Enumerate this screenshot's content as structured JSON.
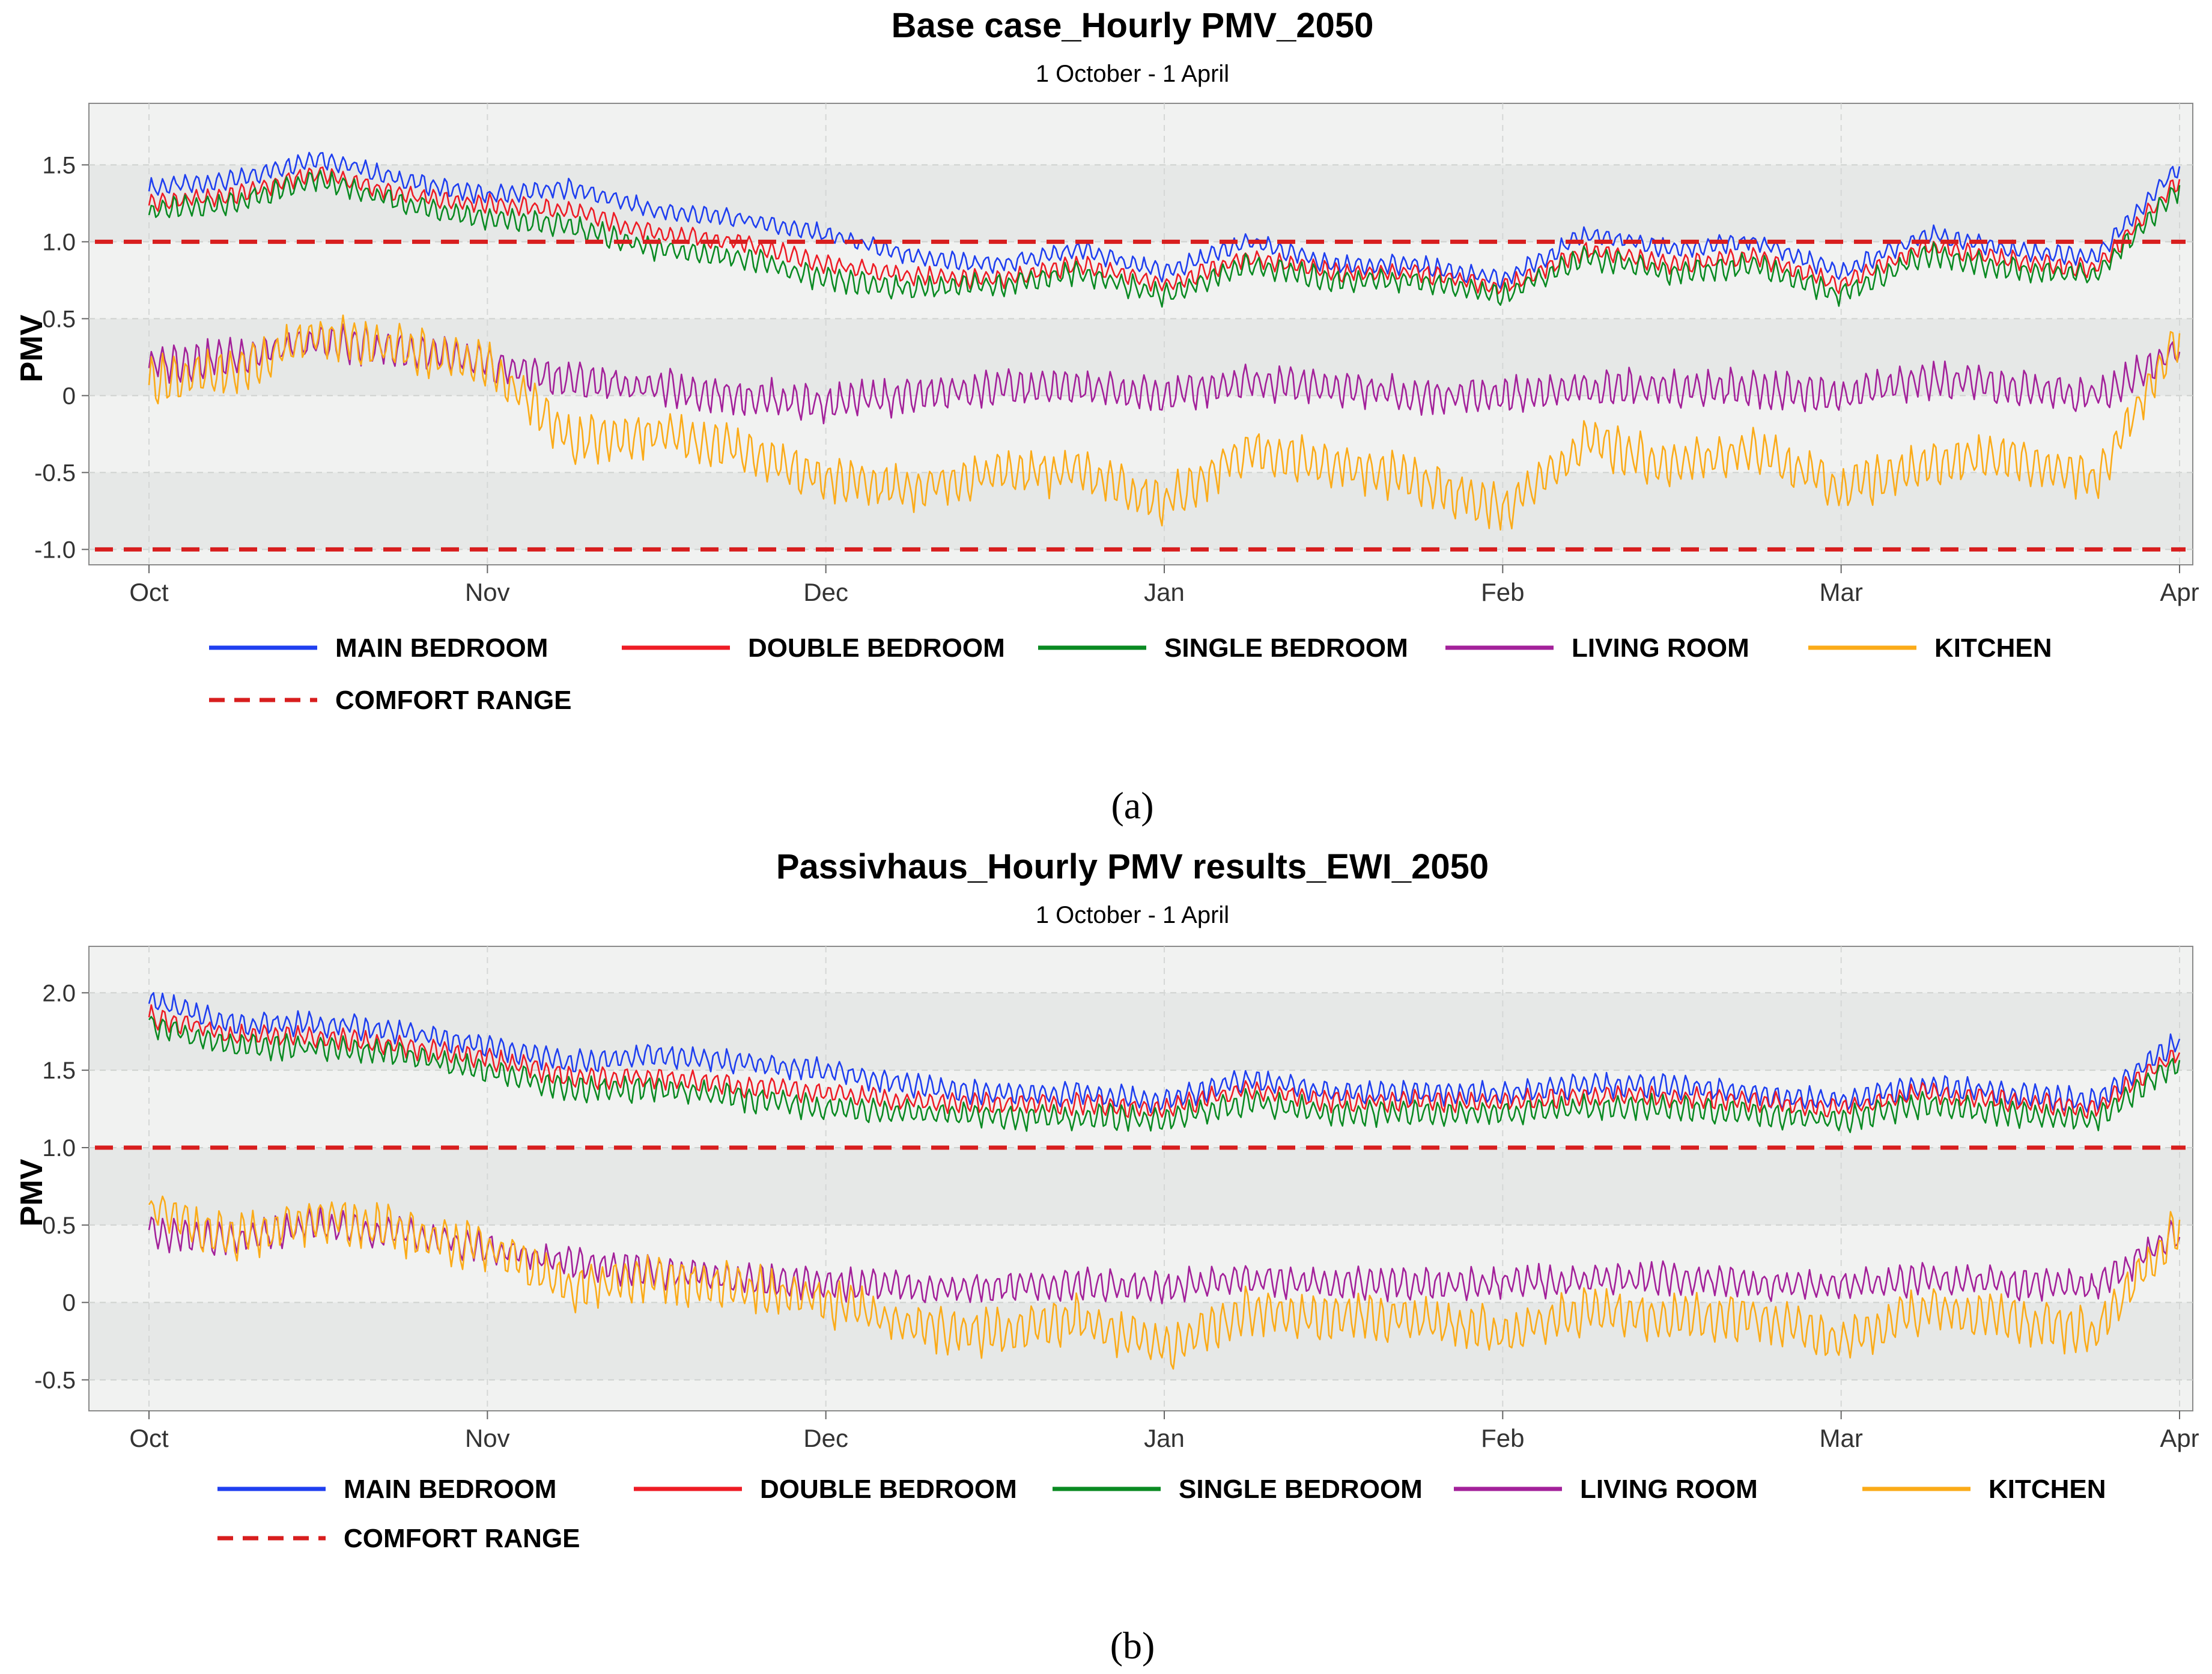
{
  "chart_data": [
    {
      "type": "line",
      "panel_label": "(a)",
      "title": "Base case_Hourly PMV_2050",
      "subtitle": "1 October - 1 April",
      "xlabel": "",
      "ylabel": "PMV",
      "x_range": [
        "1 October",
        "1 April"
      ],
      "x_tick_labels": [
        "Oct",
        "Nov",
        "Dec",
        "Jan",
        "Feb",
        "Mar",
        "Apr"
      ],
      "ylim": [
        -1.1,
        1.9
      ],
      "y_ticks": [
        -1.0,
        -0.5,
        0,
        0.5,
        1.0,
        1.5
      ],
      "y_tick_labels": [
        "-1.0",
        "-0.5",
        "0",
        "0.5",
        "1.0",
        "1.5"
      ],
      "grid": true,
      "legend_position": "bottom",
      "x": [
        "Oct 1",
        "Oct 8",
        "Oct 15",
        "Oct 22",
        "Nov 1",
        "Nov 8",
        "Nov 15",
        "Nov 22",
        "Dec 1",
        "Dec 8",
        "Dec 15",
        "Dec 22",
        "Jan 1",
        "Jan 8",
        "Jan 15",
        "Jan 22",
        "Feb 1",
        "Feb 8",
        "Feb 15",
        "Feb 22",
        "Mar 1",
        "Mar 8",
        "Mar 15",
        "Mar 22",
        "Apr 1"
      ],
      "series": [
        {
          "name": "MAIN BEDROOM",
          "color": "#1f3ff0",
          "values": [
            1.35,
            1.4,
            1.55,
            1.4,
            1.3,
            1.35,
            1.2,
            1.15,
            1.05,
            0.9,
            0.85,
            0.95,
            0.8,
            1.0,
            0.85,
            0.85,
            0.75,
            1.05,
            0.95,
            1.0,
            0.8,
            1.05,
            0.95,
            0.9,
            1.5
          ],
          "amplitude": 0.08
        },
        {
          "name": "DOUBLE BEDROOM",
          "color": "#ee1c25",
          "values": [
            1.25,
            1.3,
            1.45,
            1.3,
            1.25,
            1.2,
            1.05,
            1.0,
            0.85,
            0.78,
            0.75,
            0.85,
            0.72,
            0.9,
            0.8,
            0.8,
            0.7,
            0.95,
            0.85,
            0.9,
            0.72,
            0.98,
            0.88,
            0.82,
            1.4
          ],
          "amplitude": 0.08
        },
        {
          "name": "SINGLE BEDROOM",
          "color": "#0a8a22",
          "values": [
            1.2,
            1.25,
            1.4,
            1.25,
            1.15,
            1.1,
            0.95,
            0.9,
            0.75,
            0.7,
            0.72,
            0.8,
            0.65,
            0.85,
            0.75,
            0.75,
            0.65,
            0.9,
            0.8,
            0.85,
            0.65,
            0.92,
            0.82,
            0.78,
            1.35
          ],
          "amplitude": 0.1
        },
        {
          "name": "LIVING ROOM",
          "color": "#a3219a",
          "values": [
            0.2,
            0.25,
            0.35,
            0.3,
            0.2,
            0.1,
            0.05,
            0.0,
            -0.05,
            0.0,
            0.05,
            0.05,
            0.0,
            0.1,
            0.05,
            0.0,
            0.0,
            0.05,
            0.05,
            0.05,
            0.0,
            0.1,
            0.05,
            0.0,
            0.3
          ],
          "amplitude": 0.16
        },
        {
          "name": "KITCHEN",
          "color": "#fbab18",
          "values": [
            0.1,
            0.15,
            0.4,
            0.3,
            0.2,
            -0.3,
            -0.25,
            -0.35,
            -0.55,
            -0.6,
            -0.5,
            -0.5,
            -0.7,
            -0.35,
            -0.45,
            -0.55,
            -0.75,
            -0.3,
            -0.45,
            -0.35,
            -0.6,
            -0.45,
            -0.4,
            -0.55,
            0.4
          ],
          "amplitude": 0.2
        }
      ],
      "reference_lines": {
        "name": "COMFORT RANGE",
        "color": "#d81e1e",
        "values": [
          1.0,
          -1.0
        ]
      }
    },
    {
      "type": "line",
      "panel_label": "(b)",
      "title": "Passivhaus_Hourly PMV results_EWI_2050",
      "subtitle": "1 October - 1 April",
      "xlabel": "",
      "ylabel": "PMV",
      "x_range": [
        "1 October",
        "1 April"
      ],
      "x_tick_labels": [
        "Oct",
        "Nov",
        "Dec",
        "Jan",
        "Feb",
        "Mar",
        "Apr"
      ],
      "ylim": [
        -0.7,
        2.3
      ],
      "y_ticks": [
        -0.5,
        0,
        0.5,
        1.0,
        1.5,
        2.0
      ],
      "y_tick_labels": [
        "-0.5",
        "0",
        "0.5",
        "1.0",
        "1.5",
        "2.0"
      ],
      "grid": true,
      "legend_position": "bottom",
      "x": [
        "Oct 1",
        "Oct 8",
        "Oct 15",
        "Oct 22",
        "Nov 1",
        "Nov 8",
        "Nov 15",
        "Nov 22",
        "Dec 1",
        "Dec 8",
        "Dec 15",
        "Dec 22",
        "Jan 1",
        "Jan 8",
        "Jan 15",
        "Jan 22",
        "Feb 1",
        "Feb 8",
        "Feb 15",
        "Feb 22",
        "Mar 1",
        "Mar 8",
        "Mar 15",
        "Mar 22",
        "Apr 1"
      ],
      "series": [
        {
          "name": "MAIN BEDROOM",
          "color": "#1f3ff0",
          "values": [
            1.95,
            1.8,
            1.8,
            1.75,
            1.65,
            1.55,
            1.6,
            1.55,
            1.5,
            1.4,
            1.35,
            1.35,
            1.3,
            1.45,
            1.35,
            1.35,
            1.35,
            1.4,
            1.4,
            1.35,
            1.3,
            1.4,
            1.35,
            1.3,
            1.7
          ],
          "amplitude": 0.1
        },
        {
          "name": "DOUBLE BEDROOM",
          "color": "#ee1c25",
          "values": [
            1.85,
            1.72,
            1.72,
            1.65,
            1.58,
            1.45,
            1.45,
            1.4,
            1.35,
            1.3,
            1.28,
            1.28,
            1.25,
            1.38,
            1.3,
            1.3,
            1.3,
            1.33,
            1.33,
            1.3,
            1.25,
            1.35,
            1.3,
            1.25,
            1.62
          ],
          "amplitude": 0.09
        },
        {
          "name": "SINGLE BEDROOM",
          "color": "#0a8a22",
          "values": [
            1.8,
            1.65,
            1.65,
            1.6,
            1.5,
            1.38,
            1.38,
            1.32,
            1.25,
            1.22,
            1.2,
            1.2,
            1.18,
            1.3,
            1.22,
            1.22,
            1.22,
            1.26,
            1.26,
            1.22,
            1.18,
            1.28,
            1.22,
            1.18,
            1.55
          ],
          "amplitude": 0.11
        },
        {
          "name": "LIVING ROOM",
          "color": "#a3219a",
          "values": [
            0.45,
            0.4,
            0.5,
            0.45,
            0.35,
            0.25,
            0.2,
            0.15,
            0.12,
            0.1,
            0.1,
            0.12,
            0.1,
            0.15,
            0.12,
            0.12,
            0.12,
            0.15,
            0.15,
            0.12,
            0.1,
            0.15,
            0.12,
            0.1,
            0.45
          ],
          "amplitude": 0.14
        },
        {
          "name": "KITCHEN",
          "color": "#fbab18",
          "values": [
            0.6,
            0.4,
            0.55,
            0.45,
            0.35,
            0.1,
            0.15,
            0.1,
            0.0,
            -0.15,
            -0.2,
            -0.1,
            -0.3,
            -0.05,
            -0.1,
            -0.1,
            -0.2,
            -0.05,
            -0.1,
            -0.1,
            -0.25,
            -0.05,
            -0.1,
            -0.2,
            0.5
          ],
          "amplitude": 0.2
        }
      ],
      "reference_lines": {
        "name": "COMFORT RANGE",
        "color": "#d81e1e",
        "values": [
          1.0
        ]
      }
    }
  ]
}
